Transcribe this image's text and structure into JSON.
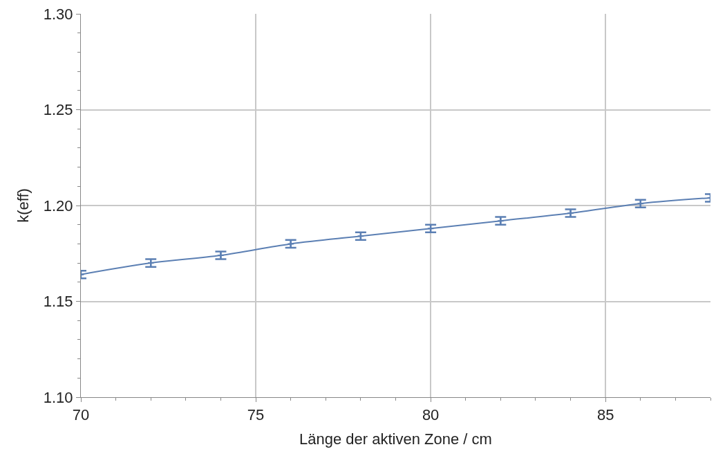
{
  "chart_data": {
    "type": "line",
    "xlabel": "Länge der aktiven Zone / cm",
    "ylabel": "k(eff)",
    "x": [
      70,
      72,
      74,
      76,
      78,
      80,
      82,
      84,
      86,
      88
    ],
    "series": [
      {
        "color": "#5b7fb3",
        "values": [
          1.164,
          1.17,
          1.174,
          1.18,
          1.184,
          1.188,
          1.192,
          1.196,
          1.201,
          1.204
        ],
        "errors": [
          0.002,
          0.002,
          0.002,
          0.002,
          0.002,
          0.002,
          0.002,
          0.002,
          0.002,
          0.002
        ]
      }
    ],
    "xlim": [
      70,
      88
    ],
    "xticks": [
      70,
      75,
      80,
      85
    ],
    "ylim": [
      1.1,
      1.3
    ],
    "yticks": [
      {
        "value": 1.1,
        "label": "1.10"
      },
      {
        "value": 1.15,
        "label": "1.15"
      },
      {
        "value": 1.2,
        "label": "1.20"
      },
      {
        "value": 1.25,
        "label": "1.25"
      },
      {
        "value": 1.3,
        "label": "1.30"
      }
    ],
    "grid": true,
    "marker": "cross",
    "line_style": "solid"
  }
}
